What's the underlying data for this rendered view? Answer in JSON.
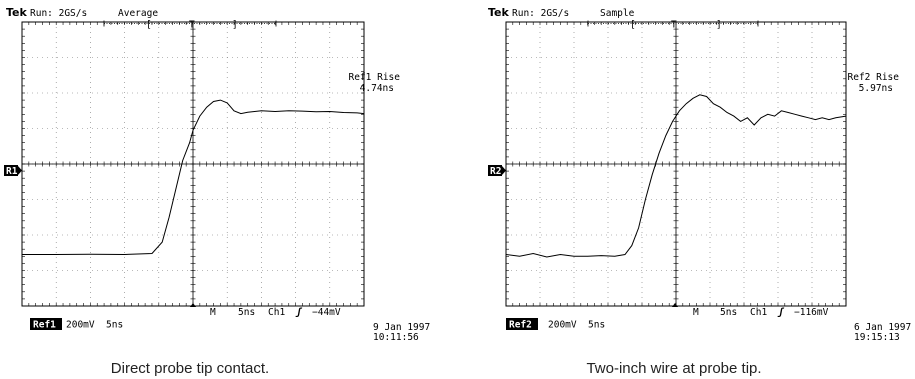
{
  "chart_data": [
    {
      "type": "line",
      "title": "",
      "header": {
        "brand": "Tek",
        "run": "Run: 2GS/s",
        "mode": "Average"
      },
      "ref_marker": "R1",
      "measurement": {
        "label": "Ref1 Rise",
        "value": "4.74ns"
      },
      "footer": {
        "ref_badge": "Ref1",
        "volts_per_div": "200mV",
        "ref_time_per_div": "5ns",
        "marker": "M",
        "time_per_div": "5ns",
        "channel": "Ch1",
        "trigger_symbol": "ʃ",
        "trigger_level": "−44mV",
        "date": "9 Jan 1997",
        "time": "10:11:56"
      },
      "caption": "Direct probe tip contact.",
      "xlim": [
        -5,
        5
      ],
      "ylim": [
        -4,
        4
      ],
      "grid": true,
      "series": [
        {
          "x": [
            -5.0,
            -4.0,
            -3.0,
            -2.0,
            -1.2,
            -0.9,
            -0.7,
            -0.5,
            -0.3,
            -0.1,
            0.0,
            0.2,
            0.4,
            0.6,
            0.8,
            1.0,
            1.2,
            1.4,
            1.6,
            1.8,
            2.0,
            2.4,
            2.8,
            3.2,
            3.6,
            4.0,
            4.4,
            4.8,
            5.0
          ],
          "y": [
            -2.55,
            -2.55,
            -2.54,
            -2.55,
            -2.52,
            -2.2,
            -1.5,
            -0.7,
            0.1,
            0.6,
            0.95,
            1.35,
            1.6,
            1.76,
            1.8,
            1.72,
            1.5,
            1.42,
            1.46,
            1.48,
            1.5,
            1.48,
            1.5,
            1.49,
            1.47,
            1.48,
            1.45,
            1.44,
            1.42
          ]
        }
      ]
    },
    {
      "type": "line",
      "title": "",
      "header": {
        "brand": "Tek",
        "run": "Run: 2GS/s",
        "mode": "Sample"
      },
      "ref_marker": "R2",
      "measurement": {
        "label": "Ref2 Rise",
        "value": "5.97ns"
      },
      "footer": {
        "ref_badge": "Ref2",
        "volts_per_div": "200mV",
        "ref_time_per_div": "5ns",
        "marker": "M",
        "time_per_div": "5ns",
        "channel": "Ch1",
        "trigger_symbol": "ʃ",
        "trigger_level": "−116mV",
        "date": "6 Jan 1997",
        "time": "19:15:13"
      },
      "caption": "Two-inch wire at probe tip.",
      "xlim": [
        -5,
        5
      ],
      "ylim": [
        -4,
        4
      ],
      "grid": true,
      "series": [
        {
          "x": [
            -5.0,
            -4.6,
            -4.2,
            -3.8,
            -3.4,
            -3.0,
            -2.6,
            -2.2,
            -1.8,
            -1.5,
            -1.3,
            -1.1,
            -0.9,
            -0.7,
            -0.5,
            -0.3,
            -0.1,
            0.1,
            0.3,
            0.5,
            0.7,
            0.9,
            1.1,
            1.3,
            1.5,
            1.7,
            1.9,
            2.1,
            2.3,
            2.5,
            2.7,
            2.9,
            3.1,
            3.3,
            3.5,
            3.7,
            3.9,
            4.1,
            4.3,
            4.5,
            4.7,
            5.0
          ],
          "y": [
            -2.55,
            -2.6,
            -2.52,
            -2.62,
            -2.55,
            -2.6,
            -2.6,
            -2.58,
            -2.6,
            -2.55,
            -2.3,
            -1.8,
            -1.0,
            -0.3,
            0.3,
            0.8,
            1.2,
            1.5,
            1.7,
            1.85,
            1.95,
            1.9,
            1.7,
            1.6,
            1.45,
            1.35,
            1.2,
            1.3,
            1.1,
            1.3,
            1.4,
            1.35,
            1.5,
            1.45,
            1.4,
            1.35,
            1.3,
            1.25,
            1.3,
            1.25,
            1.3,
            1.35
          ]
        }
      ]
    }
  ]
}
